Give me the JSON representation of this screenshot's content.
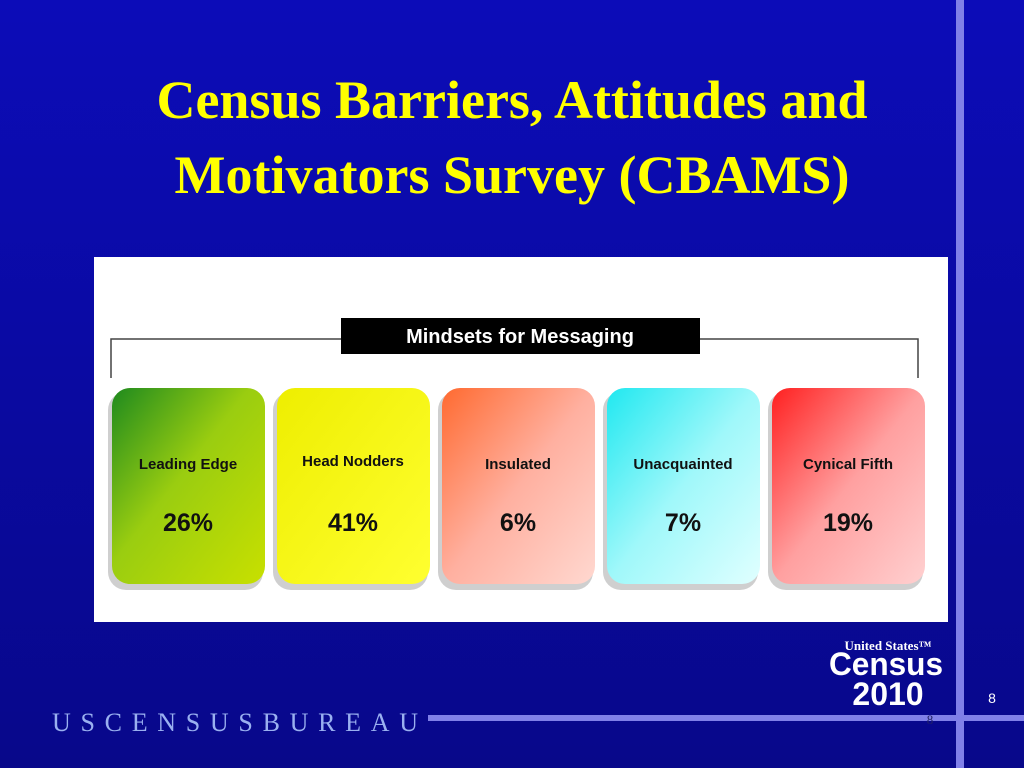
{
  "header": {
    "title": [
      "Census Barriers, Attitudes and",
      "Motivators Survey (CBAMS)"
    ]
  },
  "figure": {
    "title": "Mindsets for Messaging",
    "segments": [
      {
        "label": "Leading Edge",
        "share": "26%"
      },
      {
        "label": "Head Nodders",
        "share": "41%"
      },
      {
        "label": "Insulated",
        "share": "6%"
      },
      {
        "label": "Unacquainted",
        "share": "7%"
      },
      {
        "label": "Cynical Fifth",
        "share": "19%"
      }
    ]
  },
  "footer": {
    "agency": "USCENSUSBUREAU",
    "logo": {
      "country": "United States™",
      "name": "Census",
      "year": "2010"
    },
    "page_number": "8",
    "slide_number": "8"
  }
}
